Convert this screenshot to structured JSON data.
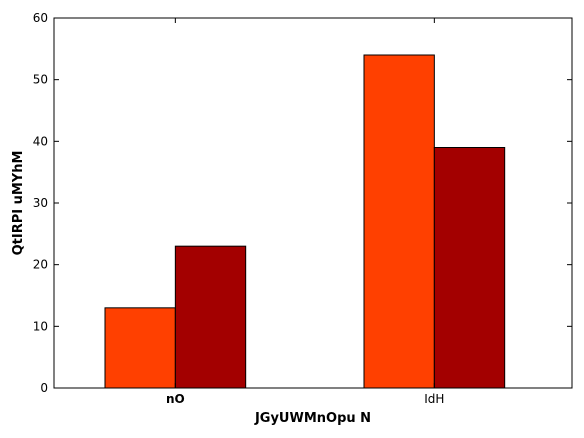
{
  "chart_data": {
    "type": "bar",
    "title": "",
    "xlabel": "JGyUWMnOpu N",
    "ylabel": "QtIRPI uMYhM",
    "categories": [
      "nO",
      "IdH"
    ],
    "category_bold": [
      true,
      false
    ],
    "series": [
      {
        "values": [
          13,
          54
        ],
        "color": "#ff4000"
      },
      {
        "values": [
          23,
          39
        ],
        "color": "#a30000"
      }
    ],
    "ylim": [
      0,
      60
    ],
    "yticks": [
      0,
      10,
      20,
      30,
      40,
      50,
      60
    ],
    "grid": false,
    "legend": "none"
  }
}
